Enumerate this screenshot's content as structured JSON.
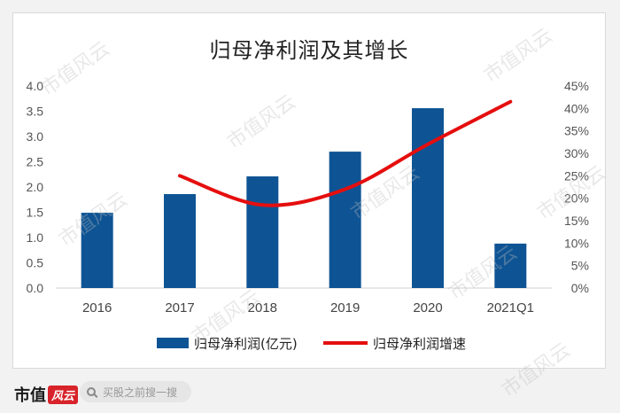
{
  "chart_data": {
    "type": "bar+line",
    "title": "归母净利润及其增长",
    "categories": [
      "2016",
      "2017",
      "2018",
      "2019",
      "2020",
      "2021Q1"
    ],
    "series": [
      {
        "name": "归母净利润(亿元)",
        "type": "bar",
        "axis": "left",
        "values": [
          1.49,
          1.86,
          2.21,
          2.7,
          3.56,
          0.88
        ],
        "color": "#0e5494"
      },
      {
        "name": "归母净利润增速",
        "type": "line",
        "axis": "right",
        "x": [
          "2017",
          "2018",
          "2019",
          "2020",
          "2021Q1"
        ],
        "values": [
          0.25,
          0.185,
          0.22,
          0.32,
          0.415
        ],
        "color": "#e50e0e"
      }
    ],
    "ylim_left": [
      0,
      4.0
    ],
    "yticks_left": [
      "0.0",
      "0.5",
      "1.0",
      "1.5",
      "2.0",
      "2.5",
      "3.0",
      "3.5",
      "4.0"
    ],
    "ylim_right": [
      0,
      0.45
    ],
    "yticks_right": [
      "0%",
      "5%",
      "10%",
      "15%",
      "20%",
      "25%",
      "30%",
      "35%",
      "40%",
      "45%"
    ],
    "grid": false,
    "legend": "bottom"
  },
  "watermark": "市值风云",
  "footer": {
    "brand_text": "市值",
    "brand_mark": "风云",
    "search_placeholder": "买股之前搜一搜"
  }
}
